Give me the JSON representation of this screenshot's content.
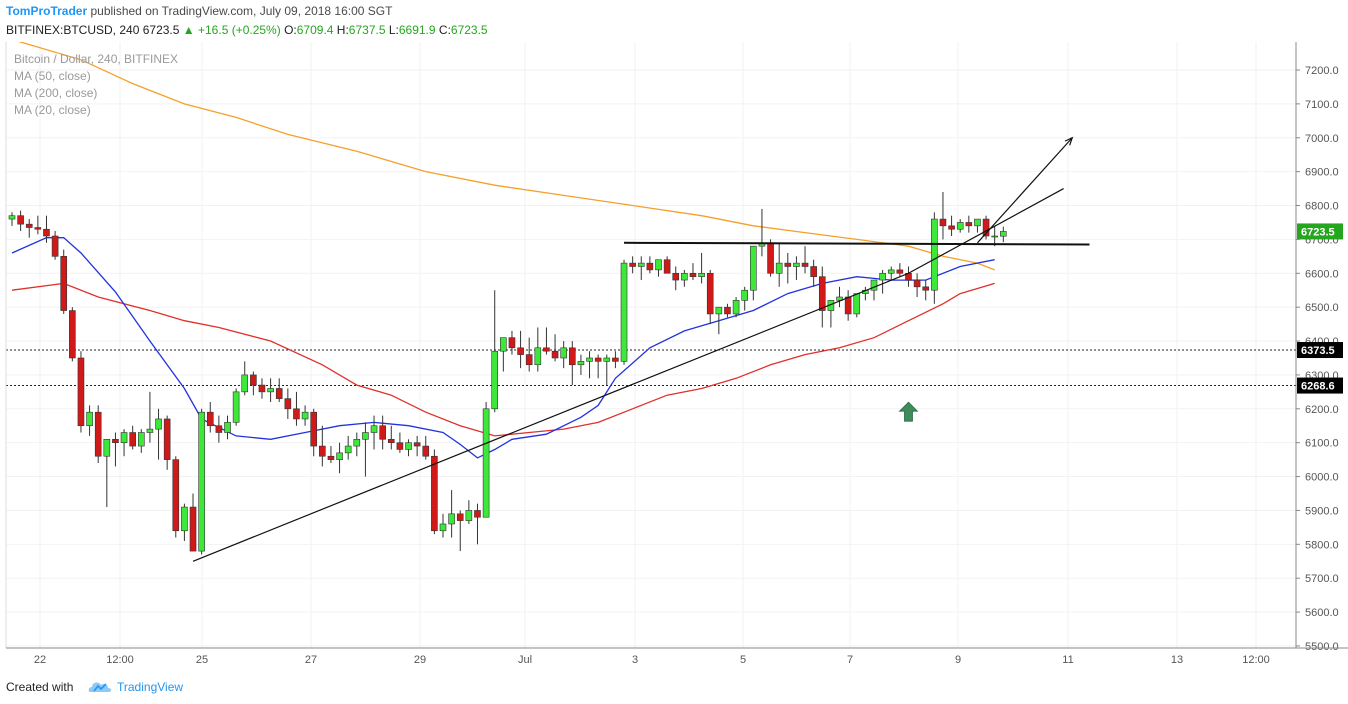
{
  "header": {
    "author": "TomProTrader",
    "published_text": "published on TradingView.com, July 09, 2018 16:00 SGT",
    "symbol": "BITFINEX:BTCUSD, 240",
    "last": "6723.5",
    "change": "+16.5 (+0.25%)",
    "o_label": "O:",
    "o_value": "6709.4",
    "h_label": "H:",
    "h_value": "6737.5",
    "l_label": "L:",
    "l_value": "6691.9",
    "c_label": "C:",
    "c_value": "6723.5"
  },
  "legend": {
    "title": "Bitcoin / Dollar, 240, BITFINEX",
    "ma50": "MA (50, close)",
    "ma200": "MA (200, close)",
    "ma20": "MA (20, close)"
  },
  "footer": {
    "created_with": "Created with",
    "brand": "TradingView"
  },
  "chart_data": {
    "type": "candlestick",
    "y_ticks": [
      "7200.0",
      "7100.0",
      "7000.0",
      "6900.0",
      "6800.0",
      "6700.0",
      "6600.0",
      "6500.0",
      "6400.0",
      "6300.0",
      "6200.0",
      "6100.0",
      "6000.0",
      "5900.0",
      "5800.0",
      "5700.0",
      "5600.0",
      "5500.0"
    ],
    "y_range": [
      5500,
      7250
    ],
    "x_labels": [
      "22",
      "12:00",
      "25",
      "27",
      "29",
      "Jul",
      "3",
      "5",
      "7",
      "9",
      "11",
      "13",
      "12:00"
    ],
    "price_labels": [
      {
        "value": 6723.5,
        "text": "6723.5",
        "color": "#26a61f"
      },
      {
        "value": 6373.5,
        "text": "6373.5",
        "color": "#000000"
      },
      {
        "value": 6268.6,
        "text": "6268.6",
        "color": "#000000"
      }
    ],
    "horizontal_levels": [
      6373.5,
      6268.6
    ],
    "colors": {
      "up": "#3ee83a",
      "down": "#d01a1a",
      "ma20": "#2233dd",
      "ma50": "#e0302a",
      "ma200": "#f5a02a",
      "arrow": "#3f8b5b"
    },
    "candles": [
      [
        6760,
        6780,
        6740,
        6770
      ],
      [
        6770,
        6785,
        6725,
        6745
      ],
      [
        6745,
        6760,
        6705,
        6735
      ],
      [
        6735,
        6770,
        6715,
        6730
      ],
      [
        6730,
        6770,
        6690,
        6710
      ],
      [
        6710,
        6725,
        6640,
        6650
      ],
      [
        6650,
        6670,
        6480,
        6490
      ],
      [
        6490,
        6500,
        6340,
        6350
      ],
      [
        6350,
        6370,
        6130,
        6150
      ],
      [
        6150,
        6210,
        6120,
        6190
      ],
      [
        6190,
        6210,
        6040,
        6060
      ],
      [
        6060,
        6100,
        5910,
        6110
      ],
      [
        6110,
        6130,
        6030,
        6100
      ],
      [
        6100,
        6140,
        6060,
        6130
      ],
      [
        6130,
        6150,
        6080,
        6090
      ],
      [
        6090,
        6140,
        6070,
        6130
      ],
      [
        6130,
        6250,
        6100,
        6140
      ],
      [
        6140,
        6200,
        6050,
        6170
      ],
      [
        6170,
        6180,
        6020,
        6050
      ],
      [
        6050,
        6060,
        5820,
        5840
      ],
      [
        5840,
        5920,
        5810,
        5910
      ],
      [
        5910,
        5950,
        5790,
        5780
      ],
      [
        5780,
        6200,
        5770,
        6190
      ],
      [
        6190,
        6220,
        6130,
        6150
      ],
      [
        6150,
        6180,
        6100,
        6130
      ],
      [
        6130,
        6180,
        6110,
        6160
      ],
      [
        6160,
        6260,
        6150,
        6250
      ],
      [
        6250,
        6340,
        6240,
        6300
      ],
      [
        6300,
        6310,
        6240,
        6270
      ],
      [
        6270,
        6290,
        6230,
        6250
      ],
      [
        6250,
        6290,
        6220,
        6260
      ],
      [
        6260,
        6290,
        6220,
        6230
      ],
      [
        6230,
        6260,
        6170,
        6200
      ],
      [
        6200,
        6250,
        6150,
        6170
      ],
      [
        6170,
        6210,
        6150,
        6190
      ],
      [
        6190,
        6200,
        6060,
        6090
      ],
      [
        6090,
        6150,
        6030,
        6060
      ],
      [
        6060,
        6090,
        6040,
        6050
      ],
      [
        6050,
        6100,
        6010,
        6070
      ],
      [
        6070,
        6120,
        6050,
        6090
      ],
      [
        6090,
        6130,
        6060,
        6110
      ],
      [
        6110,
        6160,
        6000,
        6130
      ],
      [
        6130,
        6180,
        6080,
        6150
      ],
      [
        6150,
        6180,
        6080,
        6110
      ],
      [
        6110,
        6150,
        6080,
        6100
      ],
      [
        6100,
        6130,
        6070,
        6080
      ],
      [
        6080,
        6110,
        6060,
        6100
      ],
      [
        6100,
        6120,
        6060,
        6090
      ],
      [
        6090,
        6120,
        6050,
        6060
      ],
      [
        6060,
        6080,
        5830,
        5840
      ],
      [
        5840,
        5890,
        5820,
        5860
      ],
      [
        5860,
        5960,
        5820,
        5890
      ],
      [
        5890,
        5900,
        5780,
        5870
      ],
      [
        5870,
        5930,
        5860,
        5900
      ],
      [
        5900,
        5920,
        5800,
        5880
      ],
      [
        5880,
        6220,
        5880,
        6200
      ],
      [
        6200,
        6550,
        6190,
        6370
      ],
      [
        6370,
        6410,
        6310,
        6410
      ],
      [
        6410,
        6430,
        6360,
        6380
      ],
      [
        6380,
        6430,
        6320,
        6360
      ],
      [
        6360,
        6410,
        6310,
        6330
      ],
      [
        6330,
        6440,
        6310,
        6380
      ],
      [
        6380,
        6440,
        6360,
        6370
      ],
      [
        6370,
        6420,
        6340,
        6350
      ],
      [
        6350,
        6400,
        6320,
        6380
      ],
      [
        6380,
        6400,
        6270,
        6330
      ],
      [
        6330,
        6360,
        6300,
        6340
      ],
      [
        6340,
        6370,
        6290,
        6350
      ],
      [
        6350,
        6360,
        6290,
        6340
      ],
      [
        6340,
        6360,
        6270,
        6350
      ],
      [
        6350,
        6370,
        6320,
        6340
      ],
      [
        6340,
        6640,
        6330,
        6630
      ],
      [
        6630,
        6650,
        6600,
        6620
      ],
      [
        6620,
        6650,
        6580,
        6630
      ],
      [
        6630,
        6650,
        6600,
        6610
      ],
      [
        6610,
        6640,
        6590,
        6640
      ],
      [
        6640,
        6650,
        6600,
        6600
      ],
      [
        6600,
        6620,
        6550,
        6580
      ],
      [
        6580,
        6610,
        6560,
        6600
      ],
      [
        6600,
        6630,
        6580,
        6590
      ],
      [
        6590,
        6660,
        6570,
        6600
      ],
      [
        6600,
        6610,
        6450,
        6480
      ],
      [
        6480,
        6490,
        6420,
        6500
      ],
      [
        6500,
        6510,
        6470,
        6480
      ],
      [
        6480,
        6530,
        6470,
        6520
      ],
      [
        6520,
        6560,
        6490,
        6550
      ],
      [
        6550,
        6680,
        6520,
        6680
      ],
      [
        6680,
        6790,
        6650,
        6690
      ],
      [
        6690,
        6700,
        6590,
        6600
      ],
      [
        6600,
        6690,
        6560,
        6630
      ],
      [
        6630,
        6660,
        6570,
        6620
      ],
      [
        6620,
        6650,
        6580,
        6630
      ],
      [
        6630,
        6680,
        6600,
        6620
      ],
      [
        6620,
        6640,
        6560,
        6590
      ],
      [
        6590,
        6620,
        6440,
        6490
      ],
      [
        6490,
        6520,
        6440,
        6520
      ],
      [
        6520,
        6560,
        6500,
        6530
      ],
      [
        6530,
        6550,
        6460,
        6480
      ],
      [
        6480,
        6540,
        6470,
        6540
      ],
      [
        6540,
        6560,
        6520,
        6550
      ],
      [
        6550,
        6580,
        6520,
        6580
      ],
      [
        6580,
        6610,
        6540,
        6600
      ],
      [
        6600,
        6620,
        6580,
        6610
      ],
      [
        6610,
        6630,
        6590,
        6600
      ],
      [
        6600,
        6620,
        6560,
        6580
      ],
      [
        6580,
        6600,
        6530,
        6560
      ],
      [
        6560,
        6580,
        6520,
        6550
      ],
      [
        6550,
        6780,
        6510,
        6760
      ],
      [
        6760,
        6840,
        6700,
        6740
      ],
      [
        6740,
        6770,
        6710,
        6730
      ],
      [
        6730,
        6760,
        6720,
        6750
      ],
      [
        6750,
        6770,
        6720,
        6740
      ],
      [
        6740,
        6760,
        6720,
        6760
      ],
      [
        6760,
        6770,
        6700,
        6710
      ],
      [
        6710,
        6740,
        6680,
        6710
      ],
      [
        6709.4,
        6737.5,
        6691.9,
        6723.5
      ]
    ],
    "ma20": [
      [
        0,
        6660
      ],
      [
        4,
        6705
      ],
      [
        6,
        6705
      ],
      [
        8,
        6660
      ],
      [
        12,
        6545
      ],
      [
        16,
        6400
      ],
      [
        20,
        6260
      ],
      [
        22,
        6170
      ],
      [
        26,
        6120
      ],
      [
        30,
        6110
      ],
      [
        34,
        6130
      ],
      [
        38,
        6150
      ],
      [
        42,
        6160
      ],
      [
        46,
        6150
      ],
      [
        50,
        6130
      ],
      [
        52,
        6095
      ],
      [
        54,
        6055
      ],
      [
        56,
        6080
      ],
      [
        58,
        6110
      ],
      [
        62,
        6125
      ],
      [
        66,
        6175
      ],
      [
        68,
        6210
      ],
      [
        70,
        6290
      ],
      [
        74,
        6380
      ],
      [
        78,
        6430
      ],
      [
        82,
        6460
      ],
      [
        86,
        6490
      ],
      [
        90,
        6540
      ],
      [
        94,
        6570
      ],
      [
        98,
        6590
      ],
      [
        102,
        6580
      ],
      [
        106,
        6580
      ],
      [
        110,
        6620
      ],
      [
        114,
        6640
      ]
    ],
    "ma50": [
      [
        0,
        6550
      ],
      [
        6,
        6570
      ],
      [
        10,
        6530
      ],
      [
        16,
        6490
      ],
      [
        20,
        6460
      ],
      [
        24,
        6440
      ],
      [
        30,
        6400
      ],
      [
        36,
        6330
      ],
      [
        40,
        6270
      ],
      [
        44,
        6240
      ],
      [
        48,
        6190
      ],
      [
        52,
        6150
      ],
      [
        56,
        6120
      ],
      [
        60,
        6130
      ],
      [
        64,
        6140
      ],
      [
        68,
        6160
      ],
      [
        72,
        6200
      ],
      [
        76,
        6240
      ],
      [
        80,
        6260
      ],
      [
        84,
        6290
      ],
      [
        88,
        6330
      ],
      [
        92,
        6360
      ],
      [
        96,
        6380
      ],
      [
        100,
        6410
      ],
      [
        104,
        6460
      ],
      [
        108,
        6510
      ],
      [
        110,
        6540
      ],
      [
        114,
        6570
      ]
    ],
    "ma200": [
      [
        0,
        7290
      ],
      [
        8,
        7230
      ],
      [
        14,
        7160
      ],
      [
        20,
        7100
      ],
      [
        26,
        7060
      ],
      [
        32,
        7010
      ],
      [
        40,
        6960
      ],
      [
        48,
        6900
      ],
      [
        56,
        6860
      ],
      [
        64,
        6830
      ],
      [
        72,
        6800
      ],
      [
        80,
        6770
      ],
      [
        86,
        6740
      ],
      [
        92,
        6720
      ],
      [
        98,
        6700
      ],
      [
        104,
        6680
      ],
      [
        108,
        6650
      ],
      [
        112,
        6630
      ],
      [
        114,
        6610
      ]
    ],
    "trendlines": [
      {
        "from": [
          21,
          5750
        ],
        "to": [
          104,
          6600
        ]
      },
      {
        "from": [
          104,
          6600
        ],
        "to": [
          122,
          6850
        ]
      },
      {
        "from": [
          71,
          6690
        ],
        "to": [
          125,
          6685
        ]
      }
    ],
    "projection_arrow": {
      "from": [
        112,
        6690
      ],
      "to": [
        123,
        7000
      ]
    },
    "up_arrow": {
      "x": 104,
      "y": 6190
    }
  }
}
